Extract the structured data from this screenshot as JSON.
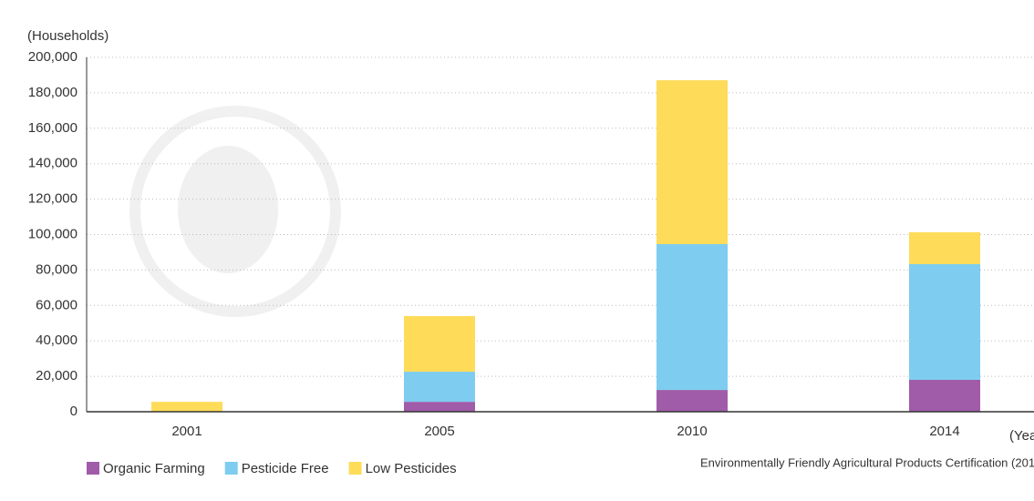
{
  "chart_data": {
    "type": "bar",
    "stacked": true,
    "y_label": "(Households)",
    "x_label": "(Yea",
    "source": "Environmentally Friendly Agricultural Products Certification (201",
    "categories": [
      "2001",
      "2005",
      "2010",
      "2014"
    ],
    "series": [
      {
        "name": "Organic Farming",
        "color": "#a05ca8",
        "values": [
          0,
          5600,
          12300,
          18000
        ]
      },
      {
        "name": "Pesticide Free",
        "color": "#7ecdf0",
        "values": [
          0,
          17000,
          82300,
          65300
        ]
      },
      {
        "name": "Low Pesticides",
        "color": "#fedc5a",
        "values": [
          5600,
          31400,
          92500,
          18000
        ]
      }
    ],
    "ylim": [
      0,
      200000
    ],
    "yticks": [
      0,
      {
        "value": 20000,
        "label": "20,000"
      },
      {
        "value": 40000,
        "label": "40,000"
      },
      {
        "value": 60000,
        "label": "60,000"
      },
      {
        "value": 80000,
        "label": "80,000"
      },
      {
        "value": 100000,
        "label": "100,000"
      },
      {
        "value": 120000,
        "label": "120,000"
      },
      {
        "value": 140000,
        "label": "140,000"
      },
      {
        "value": 160000,
        "label": "160,000"
      },
      {
        "value": 180000,
        "label": "180,000"
      },
      {
        "value": 200000,
        "label": "200,000"
      }
    ],
    "grid": true
  }
}
